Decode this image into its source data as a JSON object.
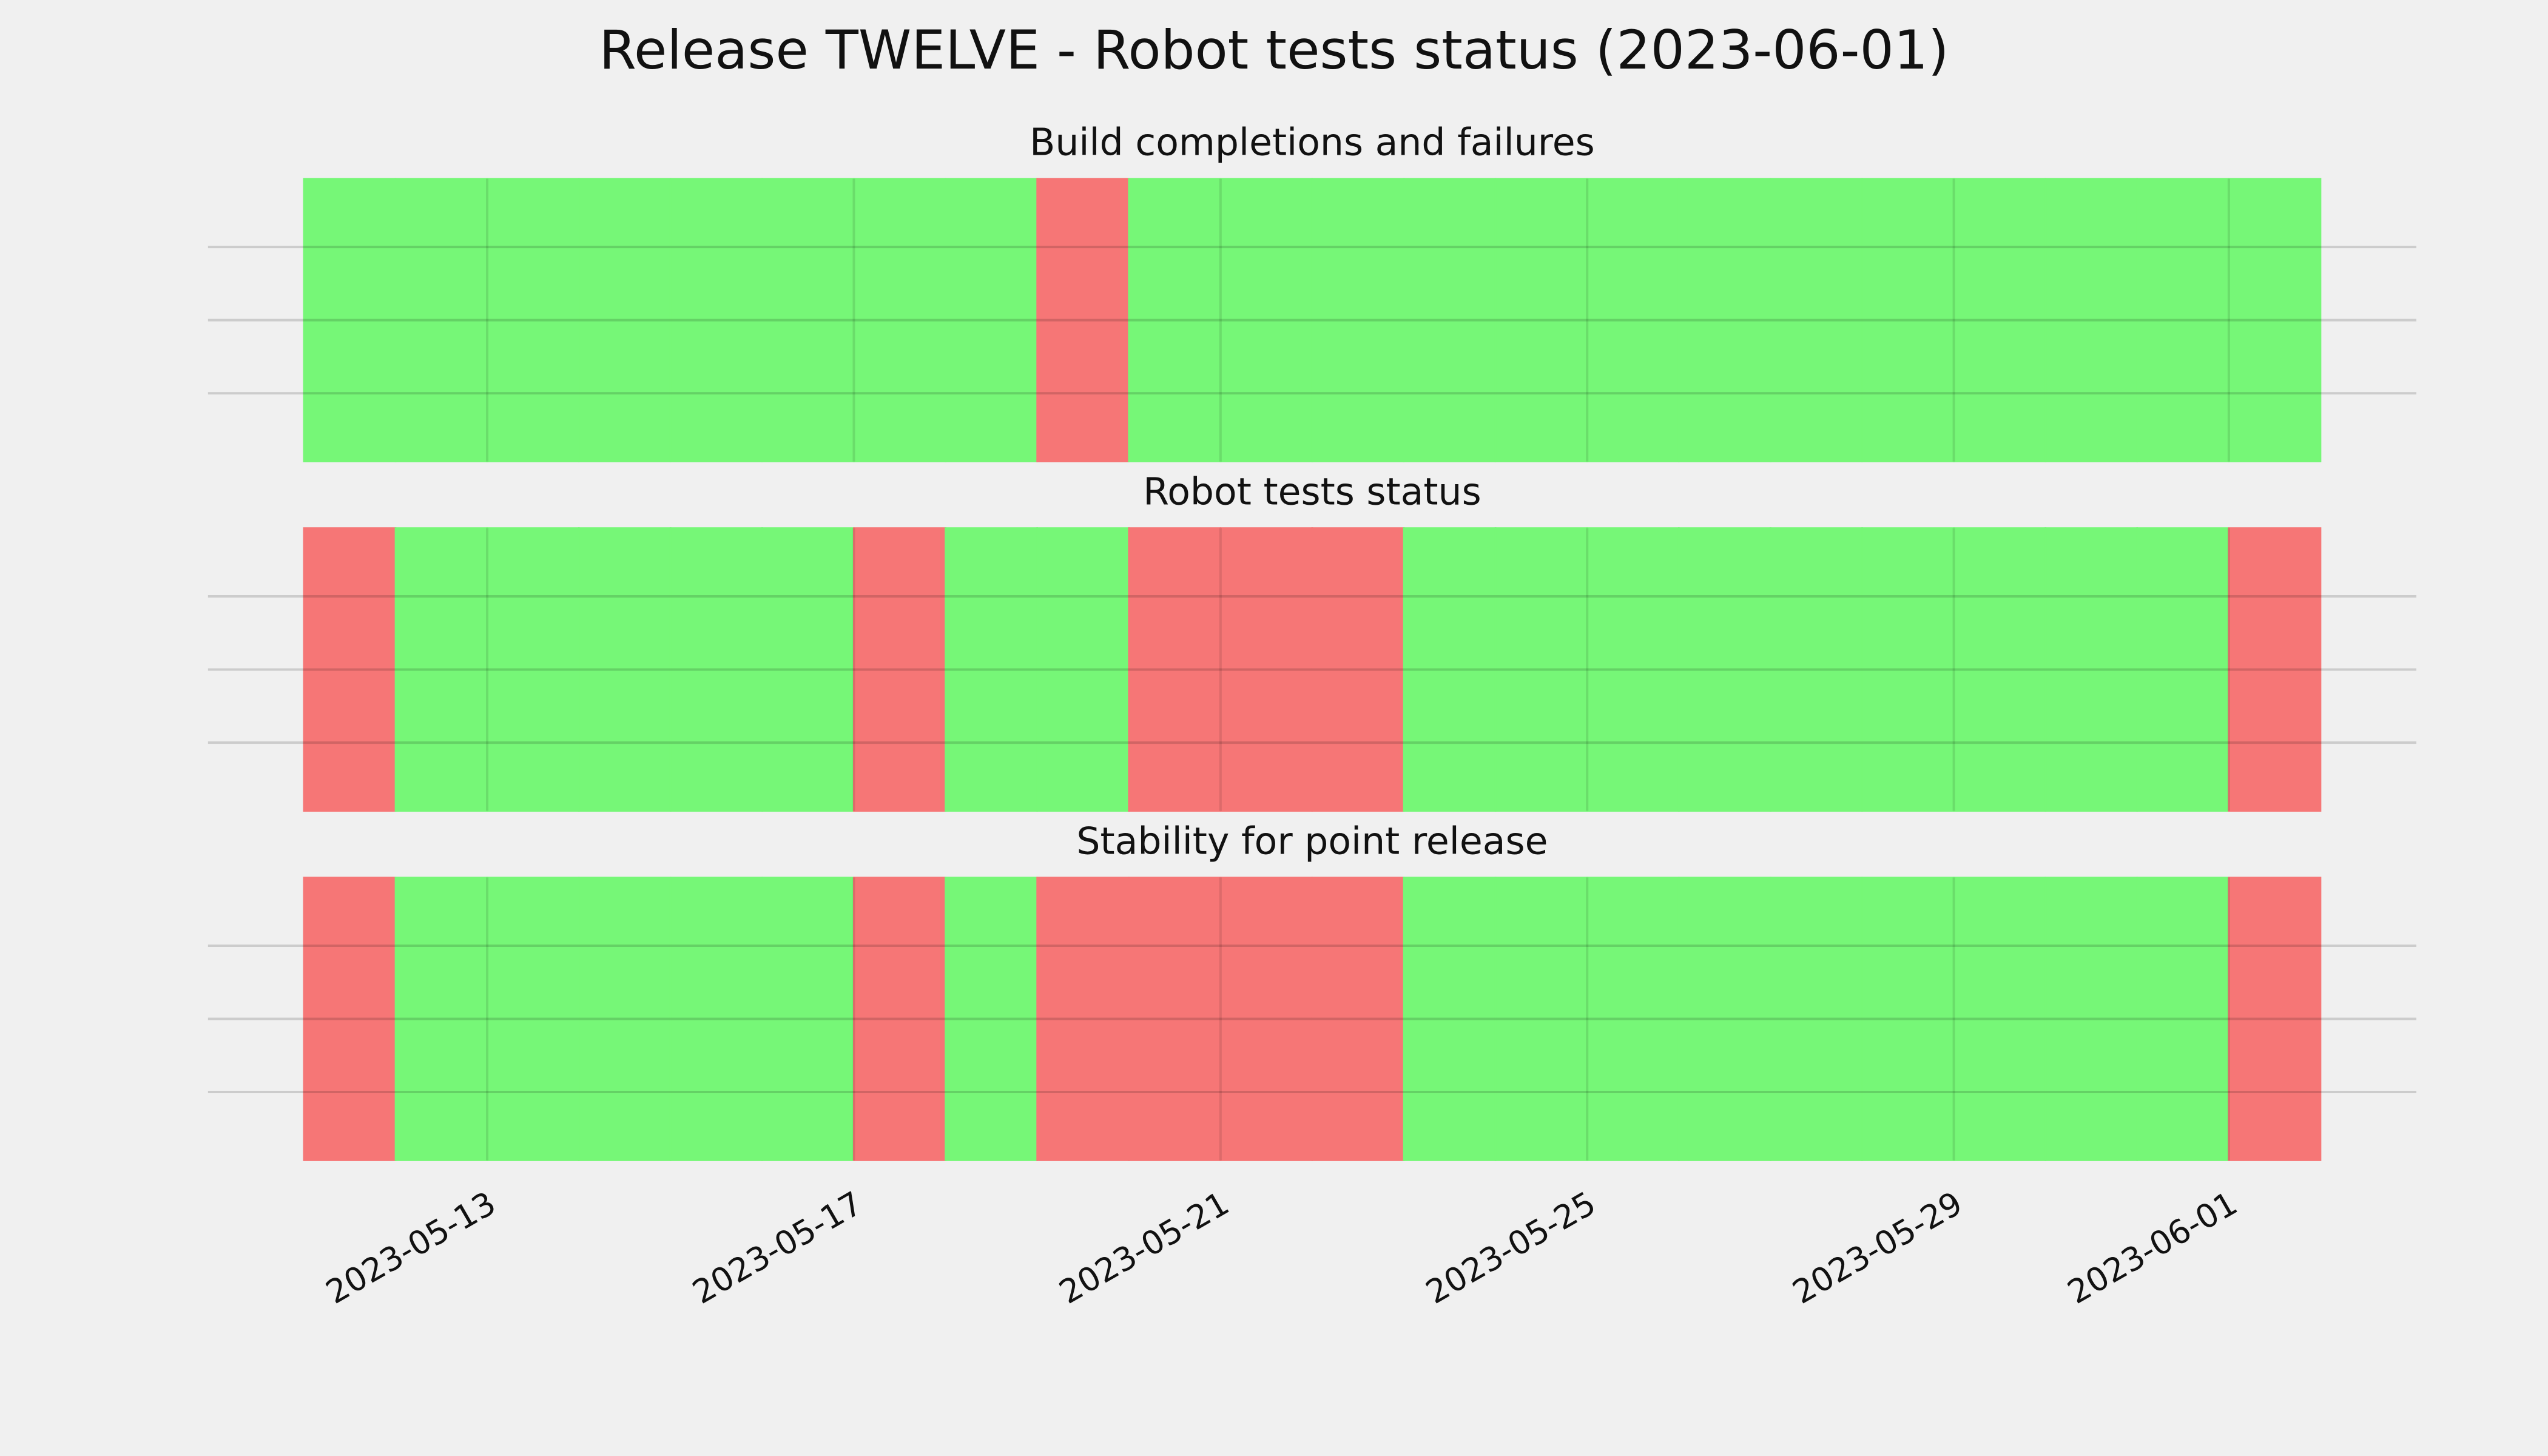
{
  "chart_data": {
    "type": "status-timeline",
    "title": "Release TWELVE - Robot tests status (2023-06-01)",
    "x": [
      "2023-05-11",
      "2023-05-12",
      "2023-05-13",
      "2023-05-14",
      "2023-05-15",
      "2023-05-16",
      "2023-05-17",
      "2023-05-18",
      "2023-05-19",
      "2023-05-20",
      "2023-05-21",
      "2023-05-22",
      "2023-05-23",
      "2023-05-24",
      "2023-05-25",
      "2023-05-26",
      "2023-05-27",
      "2023-05-28",
      "2023-05-29",
      "2023-05-30",
      "2023-05-31",
      "2023-06-01"
    ],
    "xlim": [
      "2023-05-11",
      "2023-06-02"
    ],
    "xticks": [
      "2023-05-13",
      "2023-05-17",
      "2023-05-21",
      "2023-05-25",
      "2023-05-29",
      "2023-06-01"
    ],
    "status_colors": [
      "#f67676",
      "#76f777"
    ],
    "grid": true,
    "panels": [
      {
        "title": "Build completions and failures",
        "values": [
          1,
          1,
          1,
          1,
          1,
          1,
          1,
          1,
          0,
          1,
          1,
          1,
          1,
          1,
          1,
          1,
          1,
          1,
          1,
          1,
          1,
          1
        ]
      },
      {
        "title": "Robot tests status",
        "values": [
          0,
          1,
          1,
          1,
          1,
          1,
          0,
          1,
          1,
          0,
          0,
          0,
          1,
          1,
          1,
          1,
          1,
          1,
          1,
          1,
          1,
          0
        ]
      },
      {
        "title": "Stability for point release",
        "values": [
          0,
          1,
          1,
          1,
          1,
          1,
          0,
          1,
          0,
          0,
          0,
          0,
          1,
          1,
          1,
          1,
          1,
          1,
          1,
          1,
          1,
          0
        ]
      }
    ]
  }
}
